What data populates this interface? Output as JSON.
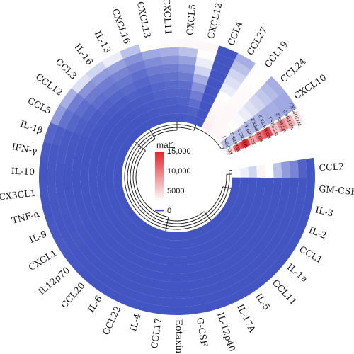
{
  "chart_data": {
    "type": "heatmap",
    "layout": "circular",
    "colors": {
      "low": "#3f51c2",
      "zero": "#ffffff",
      "high": "#e0232b"
    },
    "legend": {
      "title": "mat1",
      "ticks": [
        {
          "value": 15000,
          "label": "15,000"
        },
        {
          "value": 10000,
          "label": "10,000"
        },
        {
          "value": 5000,
          "label": "5000"
        },
        {
          "value": 0,
          "label": "0"
        }
      ]
    },
    "samples": [
      "KO.PBS.1",
      "KO.PBS.2",
      "KO.PBS.3",
      "KO.IOPTX.1",
      "KO.IOPTX.2",
      "KO.IOPTX.3",
      "WT.PBS.1",
      "WT.PBS.2",
      "WT.PBS.3",
      "WT.IOPTX.1"
    ],
    "categories": [
      "CCL2",
      "GM-CSF",
      "IL-3",
      "IL-2",
      "CCL1",
      "IL-1a",
      "CCL11",
      "IL-5",
      "IL-17A",
      "IL-12p40",
      "G-CSF",
      "Eotaxin",
      "CCL17",
      "IL-4",
      "CCL22",
      "IL-6",
      "CCL20",
      "IL12p70",
      "CXCL1",
      "IL-9",
      "TNF-α",
      "CX3CL1",
      "IL-10",
      "IFN-γ",
      "IL-1β",
      "CCL5",
      "CCL12",
      "CCL3",
      "IL-16",
      "IL-13",
      "CXCL16",
      "CXCL13",
      "CXCL11",
      "CXCL5",
      "CXCL12",
      "CCL4",
      "CCL27",
      "CCL19",
      "CCL24",
      "CXCL10"
    ],
    "values": [
      [
        2800,
        2200,
        1800,
        3200,
        2500,
        1500,
        900,
        600,
        150,
        30
      ],
      [
        30,
        30,
        30,
        30,
        30,
        30,
        30,
        30,
        30,
        30
      ],
      [
        30,
        30,
        30,
        30,
        30,
        30,
        30,
        30,
        30,
        30
      ],
      [
        30,
        30,
        30,
        30,
        30,
        30,
        30,
        30,
        30,
        30
      ],
      [
        30,
        30,
        30,
        30,
        30,
        30,
        30,
        30,
        30,
        30
      ],
      [
        30,
        30,
        30,
        30,
        30,
        30,
        30,
        30,
        30,
        30
      ],
      [
        30,
        30,
        30,
        30,
        30,
        30,
        30,
        30,
        30,
        30
      ],
      [
        30,
        30,
        30,
        30,
        30,
        30,
        30,
        30,
        30,
        30
      ],
      [
        30,
        30,
        30,
        30,
        30,
        30,
        30,
        30,
        30,
        30
      ],
      [
        30,
        30,
        30,
        30,
        30,
        30,
        30,
        30,
        30,
        30
      ],
      [
        30,
        30,
        30,
        30,
        30,
        30,
        30,
        30,
        30,
        30
      ],
      [
        30,
        30,
        30,
        30,
        30,
        30,
        30,
        30,
        30,
        30
      ],
      [
        30,
        30,
        30,
        30,
        30,
        30,
        30,
        30,
        30,
        30
      ],
      [
        30,
        30,
        30,
        30,
        30,
        30,
        30,
        30,
        30,
        30
      ],
      [
        30,
        30,
        30,
        30,
        30,
        30,
        30,
        30,
        30,
        30
      ],
      [
        30,
        30,
        30,
        30,
        30,
        30,
        30,
        30,
        30,
        30
      ],
      [
        30,
        30,
        30,
        30,
        30,
        30,
        30,
        30,
        30,
        30
      ],
      [
        30,
        30,
        30,
        30,
        30,
        30,
        30,
        30,
        40,
        60
      ],
      [
        30,
        30,
        30,
        30,
        30,
        30,
        40,
        60,
        50,
        80
      ],
      [
        30,
        30,
        30,
        30,
        30,
        40,
        60,
        40,
        50,
        70
      ],
      [
        30,
        30,
        30,
        30,
        30,
        30,
        40,
        60,
        50,
        40
      ],
      [
        30,
        30,
        30,
        30,
        30,
        30,
        30,
        40,
        60,
        50
      ],
      [
        30,
        30,
        30,
        30,
        30,
        30,
        40,
        50,
        60,
        40
      ],
      [
        30,
        30,
        30,
        30,
        30,
        40,
        50,
        70,
        60,
        80
      ],
      [
        30,
        30,
        30,
        30,
        30,
        50,
        60,
        80,
        120,
        200
      ],
      [
        30,
        30,
        30,
        30,
        50,
        80,
        120,
        200,
        350,
        900
      ],
      [
        30,
        30,
        30,
        30,
        60,
        100,
        180,
        300,
        500,
        1200
      ],
      [
        30,
        30,
        30,
        40,
        80,
        150,
        300,
        450,
        800,
        2000
      ],
      [
        30,
        30,
        40,
        60,
        100,
        200,
        350,
        500,
        900,
        1800
      ],
      [
        30,
        40,
        60,
        80,
        150,
        250,
        400,
        600,
        1000,
        2200
      ],
      [
        40,
        60,
        80,
        100,
        120,
        200,
        300,
        500,
        800,
        1500
      ],
      [
        50,
        80,
        100,
        150,
        200,
        300,
        450,
        700,
        1100,
        2500
      ],
      [
        60,
        80,
        120,
        180,
        250,
        350,
        500,
        800,
        1200,
        2800
      ],
      [
        60,
        100,
        150,
        200,
        300,
        450,
        700,
        1000,
        1500,
        3000
      ],
      [
        80,
        150,
        300,
        500,
        800,
        1200,
        1800,
        2200,
        2600,
        3000
      ],
      [
        30,
        30,
        30,
        30,
        30,
        30,
        30,
        30,
        30,
        30
      ],
      [
        3500,
        3200,
        3000,
        2800,
        2500,
        2200,
        2000,
        1800,
        1500,
        1200
      ],
      [
        3000,
        3000,
        3000,
        3000,
        2800,
        2800,
        2800,
        2600,
        2600,
        2600
      ],
      [
        3000,
        2800,
        2600,
        2400,
        2200,
        2000,
        1800,
        1600,
        1400,
        1200
      ],
      [
        1500,
        1500,
        1400,
        1400,
        1300,
        1300,
        1200,
        1200,
        1100,
        1100
      ]
    ],
    "sample_strip_values": [
      5000,
      12000,
      14500,
      8000,
      11000,
      13000,
      6000,
      9500,
      7000,
      4000
    ]
  }
}
